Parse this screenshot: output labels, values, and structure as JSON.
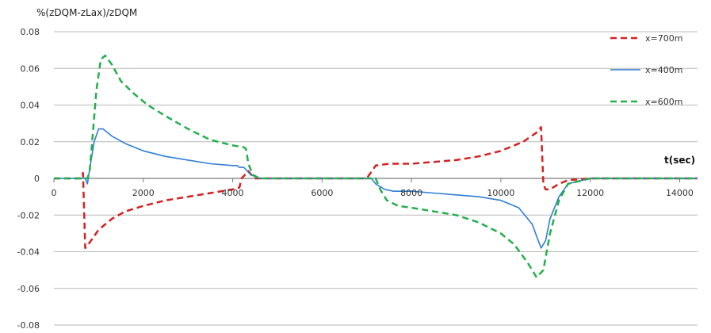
{
  "chart_data": {
    "type": "line",
    "title": "",
    "ylabel": "%(zDQM-zLax)/zDQM",
    "xlabel": "t(sec)",
    "xlim": [
      0,
      14400
    ],
    "ylim": [
      -0.08,
      0.08
    ],
    "x_ticks": [
      0,
      2000,
      4000,
      6000,
      8000,
      10000,
      12000,
      14000
    ],
    "x_tick_labels": [
      "0",
      "2000",
      "4000",
      "6000",
      "8000",
      "10000",
      "12000",
      "14000"
    ],
    "y_ticks": [
      0.08,
      0.06,
      0.04,
      0.02,
      0,
      -0.02,
      -0.04,
      -0.06,
      -0.08
    ],
    "y_tick_labels": [
      "0.08",
      "0.06",
      "0.04",
      "0.02",
      "0",
      "-0.02",
      "-0.04",
      "-0.06",
      "-0.08"
    ],
    "grid": "horizontal",
    "legend_position": "top-right",
    "series": [
      {
        "name": "x=700m",
        "color": "#d62020",
        "dash": "dash",
        "width": 2.5,
        "points": [
          [
            0,
            0
          ],
          [
            600,
            0
          ],
          [
            650,
            0.003
          ],
          [
            700,
            -0.038
          ],
          [
            800,
            -0.035
          ],
          [
            1000,
            -0.028
          ],
          [
            1300,
            -0.022
          ],
          [
            1600,
            -0.018
          ],
          [
            2000,
            -0.015
          ],
          [
            2500,
            -0.012
          ],
          [
            3000,
            -0.01
          ],
          [
            3500,
            -0.008
          ],
          [
            4000,
            -0.006
          ],
          [
            4150,
            -0.005
          ],
          [
            4200,
            0
          ],
          [
            4350,
            0.004
          ],
          [
            4450,
            0.001
          ],
          [
            4500,
            0
          ],
          [
            7000,
            0
          ],
          [
            7200,
            0.007
          ],
          [
            7500,
            0.008
          ],
          [
            8000,
            0.008
          ],
          [
            8500,
            0.009
          ],
          [
            9000,
            0.01
          ],
          [
            9500,
            0.012
          ],
          [
            10000,
            0.015
          ],
          [
            10500,
            0.02
          ],
          [
            10800,
            0.025
          ],
          [
            10900,
            0.028
          ],
          [
            10950,
            -0.003
          ],
          [
            11000,
            -0.006
          ],
          [
            11100,
            -0.006
          ],
          [
            11300,
            -0.003
          ],
          [
            11500,
            -0.001
          ],
          [
            12000,
            0
          ],
          [
            14400,
            0
          ]
        ]
      },
      {
        "name": "x=400m",
        "color": "#2f7fd4",
        "dash": "solid",
        "width": 1.6,
        "points": [
          [
            0,
            0
          ],
          [
            700,
            0
          ],
          [
            750,
            -0.003
          ],
          [
            800,
            0.005
          ],
          [
            900,
            0.02
          ],
          [
            1000,
            0.027
          ],
          [
            1100,
            0.027
          ],
          [
            1300,
            0.023
          ],
          [
            1600,
            0.019
          ],
          [
            2000,
            0.015
          ],
          [
            2500,
            0.012
          ],
          [
            3000,
            0.01
          ],
          [
            3500,
            0.008
          ],
          [
            4000,
            0.007
          ],
          [
            4100,
            0.007
          ],
          [
            4150,
            0.006
          ],
          [
            4250,
            0.006
          ],
          [
            4400,
            0.002
          ],
          [
            4600,
            0
          ],
          [
            7100,
            0
          ],
          [
            7200,
            -0.003
          ],
          [
            7400,
            -0.006
          ],
          [
            7600,
            -0.007
          ],
          [
            8000,
            -0.007
          ],
          [
            8500,
            -0.008
          ],
          [
            9000,
            -0.009
          ],
          [
            9500,
            -0.01
          ],
          [
            10000,
            -0.012
          ],
          [
            10400,
            -0.016
          ],
          [
            10700,
            -0.025
          ],
          [
            10900,
            -0.038
          ],
          [
            11000,
            -0.034
          ],
          [
            11100,
            -0.022
          ],
          [
            11300,
            -0.01
          ],
          [
            11500,
            -0.003
          ],
          [
            12000,
            0
          ],
          [
            14400,
            0
          ]
        ]
      },
      {
        "name": "x=600m",
        "color": "#22b04a",
        "dash": "dash",
        "width": 2.5,
        "points": [
          [
            0,
            0
          ],
          [
            750,
            0
          ],
          [
            800,
            0.004
          ],
          [
            850,
            0.018
          ],
          [
            950,
            0.048
          ],
          [
            1050,
            0.065
          ],
          [
            1150,
            0.067
          ],
          [
            1300,
            0.062
          ],
          [
            1500,
            0.053
          ],
          [
            1800,
            0.046
          ],
          [
            2100,
            0.04
          ],
          [
            2500,
            0.034
          ],
          [
            3000,
            0.027
          ],
          [
            3500,
            0.021
          ],
          [
            4000,
            0.018
          ],
          [
            4250,
            0.017
          ],
          [
            4300,
            0.016
          ],
          [
            4350,
            0.008
          ],
          [
            4450,
            0.002
          ],
          [
            4600,
            0
          ],
          [
            7200,
            0
          ],
          [
            7300,
            -0.006
          ],
          [
            7450,
            -0.012
          ],
          [
            7700,
            -0.015
          ],
          [
            8000,
            -0.016
          ],
          [
            8500,
            -0.018
          ],
          [
            9000,
            -0.02
          ],
          [
            9500,
            -0.024
          ],
          [
            10000,
            -0.03
          ],
          [
            10300,
            -0.036
          ],
          [
            10600,
            -0.046
          ],
          [
            10800,
            -0.054
          ],
          [
            10950,
            -0.05
          ],
          [
            11100,
            -0.03
          ],
          [
            11300,
            -0.012
          ],
          [
            11500,
            -0.003
          ],
          [
            12000,
            0
          ],
          [
            14400,
            0
          ]
        ]
      }
    ]
  }
}
